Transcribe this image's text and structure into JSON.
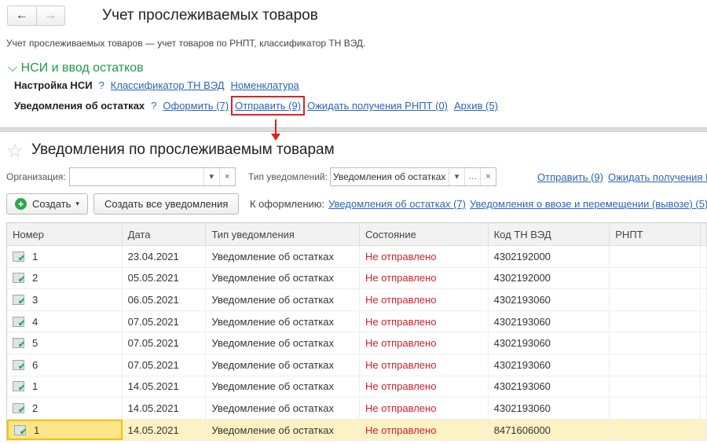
{
  "header": {
    "back_icon": "arrow-left",
    "forward_icon": "arrow-right",
    "title": "Учет прослеживаемых товаров",
    "description": "Учет прослеживаемых товаров — учет товаров по РНПТ, классификатор ТН ВЭД."
  },
  "section": {
    "title": "НСИ и ввод остатков",
    "row1": {
      "label": "Настройка НСИ",
      "help": "?",
      "links": [
        "Классификатор ТН ВЭД",
        "Номенклатура"
      ]
    },
    "row2": {
      "label": "Уведомления об остатках",
      "help": "?",
      "links": [
        "Оформить (7)",
        "Отправить (9)",
        "Ожидать получения РНПТ (0)",
        "Архив (5)"
      ]
    }
  },
  "list": {
    "title": "Уведомления по прослеживаемым товарам",
    "filters": {
      "org_label": "Организация:",
      "org_value": "",
      "type_label": "Тип уведомлений:",
      "type_value": "Уведомления об остатках",
      "links": [
        "Отправить (9)",
        "Ожидать получения РНПТ"
      ]
    },
    "toolbar": {
      "create": "Создать",
      "create_all": "Создать все уведомления",
      "pending_label": "К оформлению:",
      "pending_links": [
        "Уведомления об остатках (7)",
        "Уведомления о ввозе и перемещении (вывозе) (5)"
      ]
    },
    "columns": [
      "Номер",
      "Дата",
      "Тип уведомления",
      "Состояние",
      "Код ТН ВЭД",
      "РНПТ",
      ""
    ],
    "rows": [
      [
        "1",
        "23.04.2021",
        "Уведомление об остатках",
        "Не отправлено",
        "4302192000",
        ""
      ],
      [
        "2",
        "05.05.2021",
        "Уведомление об остатках",
        "Не отправлено",
        "4302192000",
        ""
      ],
      [
        "3",
        "06.05.2021",
        "Уведомление об остатках",
        "Не отправлено",
        "4302193060",
        ""
      ],
      [
        "4",
        "07.05.2021",
        "Уведомление об остатках",
        "Не отправлено",
        "4302193060",
        ""
      ],
      [
        "5",
        "07.05.2021",
        "Уведомление об остатках",
        "Не отправлено",
        "4302193060",
        ""
      ],
      [
        "6",
        "07.05.2021",
        "Уведомление об остатках",
        "Не отправлено",
        "4302193060",
        ""
      ],
      [
        "1",
        "14.05.2021",
        "Уведомление об остатках",
        "Не отправлено",
        "4302193060",
        ""
      ],
      [
        "2",
        "14.05.2021",
        "Уведомление об остатках",
        "Не отправлено",
        "4302193060",
        ""
      ],
      [
        "1",
        "14.05.2021",
        "Уведомление об остатках",
        "Не отправлено",
        "8471606000",
        ""
      ]
    ],
    "selected_row": 8
  },
  "colors": {
    "link": "#2a65b8",
    "section": "#1f9a4a",
    "status_red": "#d0202a",
    "highlight": "#e02020",
    "selection": "#fdf2c4"
  }
}
